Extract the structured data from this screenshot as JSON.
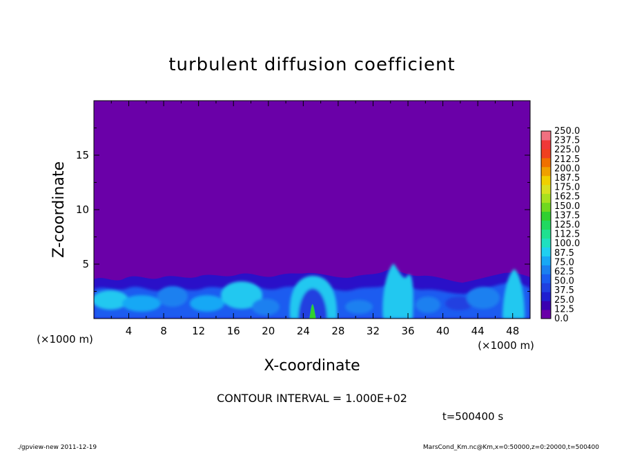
{
  "chart_data": {
    "type": "heatmap",
    "title": "turbulent diffusion coefficient",
    "xlabel": "X-coordinate",
    "ylabel": "Z-coordinate",
    "x_unit": "(×1000 m)",
    "y_unit": "(×1000 m)",
    "x_range": [
      0,
      50
    ],
    "y_range": [
      0,
      20
    ],
    "x_ticks": [
      "4",
      "8",
      "12",
      "16",
      "20",
      "24",
      "28",
      "32",
      "36",
      "40",
      "44",
      "48"
    ],
    "y_ticks": [
      "5",
      "10",
      "15"
    ],
    "contour_levels": [
      "0.0",
      "12.5",
      "25.0",
      "37.5",
      "50.0",
      "62.5",
      "75.0",
      "87.5",
      "100.0",
      "112.5",
      "125.0",
      "137.5",
      "150.0",
      "162.5",
      "175.0",
      "187.5",
      "200.0",
      "212.5",
      "225.0",
      "237.5",
      "250.0"
    ],
    "level_colors": [
      "#6a00a8",
      "#3a00b0",
      "#1f1fd0",
      "#2040e0",
      "#1a5cf0",
      "#1a80f0",
      "#18a8f5",
      "#20d0f0",
      "#20e0c0",
      "#20e090",
      "#20d860",
      "#30d030",
      "#70d820",
      "#a8e020",
      "#d8e020",
      "#f0d000",
      "#f0a000",
      "#f07000",
      "#f04020",
      "#f03838",
      "#f07080"
    ],
    "background_color": "#6a00a8",
    "contour_interval": "CONTOUR INTERVAL = 1.000E+02",
    "time_label": "t=500400  s",
    "footer_left": "./gpview-new   2011-12-19",
    "footer_right": "MarsCond_Km.nc@Km,x=0:50000,z=0:20000,t=500400",
    "features": [
      {
        "x": 0.5,
        "z": 3.5,
        "level": "37.5"
      },
      {
        "x": 5,
        "z": 2.5,
        "level": "62.5"
      },
      {
        "x": 9,
        "z": 3.2,
        "level": "50.0"
      },
      {
        "x": 13,
        "z": 3.0,
        "level": "37.5"
      },
      {
        "x": 17,
        "z": 3.2,
        "level": "62.5"
      },
      {
        "x": 20,
        "z": 2.0,
        "level": "50.0"
      },
      {
        "x": 25,
        "z": 3.5,
        "level": "75.0"
      },
      {
        "x": 25.1,
        "z": 1.3,
        "level": "125.0"
      },
      {
        "x": 33.5,
        "z": 5.0,
        "level": "62.5"
      },
      {
        "x": 36,
        "z": 3.0,
        "level": "37.5"
      },
      {
        "x": 42,
        "z": 2.0,
        "level": "25.0"
      },
      {
        "x": 47.5,
        "z": 4.5,
        "level": "62.5"
      }
    ]
  }
}
